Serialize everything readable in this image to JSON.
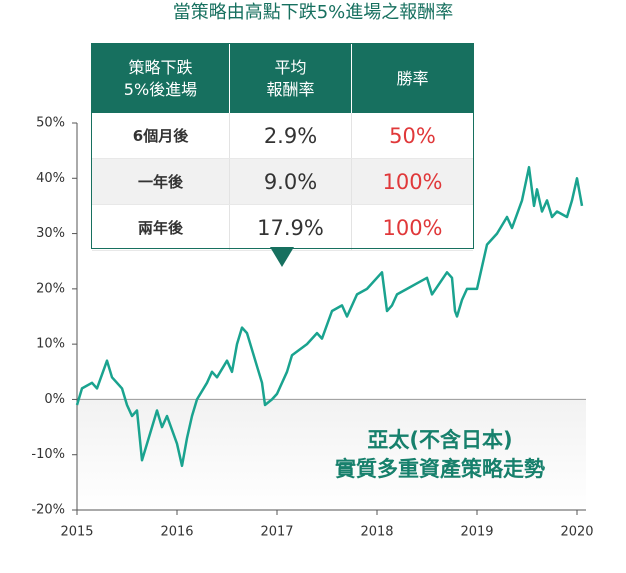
{
  "chart_data": {
    "type": "line",
    "title": "當策略由高點下跌5%進場之報酬率",
    "x": [
      2015.0,
      2015.05,
      2015.15,
      2015.2,
      2015.3,
      2015.35,
      2015.45,
      2015.5,
      2015.55,
      2015.6,
      2015.65,
      2015.7,
      2015.8,
      2015.85,
      2015.9,
      2016.0,
      2016.05,
      2016.1,
      2016.15,
      2016.2,
      2016.3,
      2016.35,
      2016.4,
      2016.5,
      2016.55,
      2016.6,
      2016.65,
      2016.7,
      2016.75,
      2016.8,
      2016.85,
      2016.88,
      2016.95,
      2017.0,
      2017.1,
      2017.15,
      2017.3,
      2017.4,
      2017.45,
      2017.55,
      2017.65,
      2017.7,
      2017.8,
      2017.9,
      2018.05,
      2018.1,
      2018.15,
      2018.2,
      2018.3,
      2018.4,
      2018.5,
      2018.55,
      2018.7,
      2018.75,
      2018.78,
      2018.8,
      2018.85,
      2018.9,
      2019.0,
      2019.05,
      2019.1,
      2019.2,
      2019.3,
      2019.35,
      2019.45,
      2019.52,
      2019.57,
      2019.6,
      2019.65,
      2019.7,
      2019.75,
      2019.8,
      2019.9,
      2019.95,
      2020.0,
      2020.05
    ],
    "series": [
      {
        "color": "#1aa38f",
        "values": [
          -1,
          2,
          3,
          2,
          7,
          4,
          2,
          -1,
          -3,
          -2,
          -11,
          -8,
          -2,
          -5,
          -3,
          -8,
          -12,
          -7,
          -3,
          0,
          3,
          5,
          4,
          7,
          5,
          10,
          13,
          12,
          9,
          6,
          3,
          -1,
          0,
          1,
          5,
          8,
          10,
          12,
          11,
          16,
          17,
          15,
          19,
          20,
          23,
          16,
          17,
          19,
          20,
          21,
          22,
          19,
          23,
          22,
          16,
          15,
          18,
          20,
          20,
          24,
          28,
          30,
          33,
          31,
          36,
          42,
          35,
          38,
          34,
          36,
          33,
          34,
          33,
          36,
          40,
          35
        ]
      }
    ],
    "xlim": [
      2015,
      2020.07
    ],
    "xticks": [
      2015,
      2016,
      2017,
      2018,
      2019,
      2020
    ],
    "ylim": [
      -20,
      50
    ],
    "yticks": [
      {
        "value": -20,
        "label": "-20%"
      },
      {
        "value": -10,
        "label": "-10%"
      },
      {
        "value": 0,
        "label": "0%"
      },
      {
        "value": 10,
        "label": "10%"
      },
      {
        "value": 20,
        "label": "20%"
      },
      {
        "value": 30,
        "label": "30%"
      },
      {
        "value": 40,
        "label": "40%"
      },
      {
        "value": 50,
        "label": "50%"
      }
    ],
    "annotations": [
      "亞太(不含日本)",
      "實質多重資產策略走勢"
    ]
  },
  "table": {
    "header": [
      "策略下跌\n5%後進場",
      "平均\n報酬率",
      "勝率"
    ],
    "rows": [
      [
        "6個月後",
        "2.9%",
        "50%"
      ],
      [
        "一年後",
        "9.0%",
        "100%"
      ],
      [
        "兩年後",
        "17.9%",
        "100%"
      ]
    ]
  }
}
